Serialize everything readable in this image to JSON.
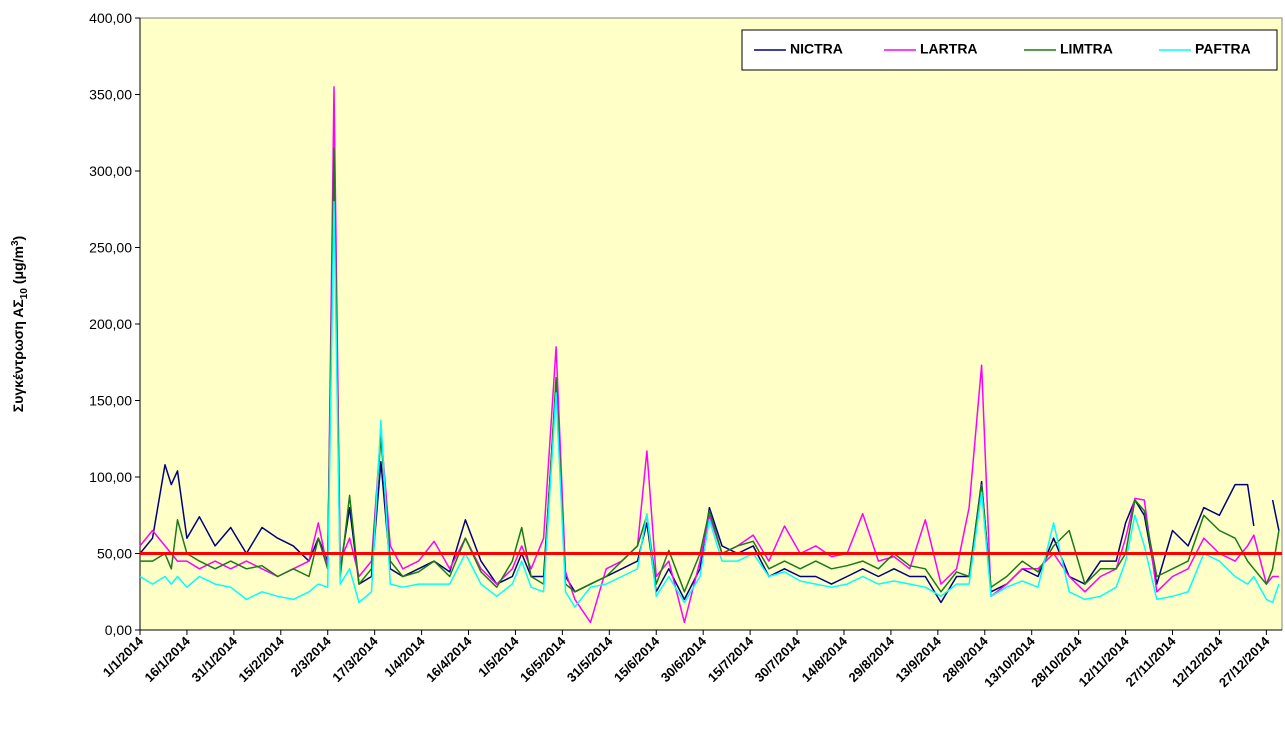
{
  "chart_data": {
    "type": "line",
    "ylabel_parts": [
      "Συγκέντρωση ΑΣ",
      "10",
      " (μg/m",
      "3",
      ")"
    ],
    "x": [
      "1/1/2014",
      "5/1/2014",
      "9/1/2014",
      "11/1/2014",
      "13/1/2014",
      "16/1/2014",
      "20/1/2014",
      "25/1/2014",
      "30/1/2014",
      "4/2/2014",
      "9/2/2014",
      "14/2/2014",
      "19/2/2014",
      "24/2/2014",
      "27/2/2014",
      "2/3/2014",
      "4/3/2014",
      "6/3/2014",
      "9/3/2014",
      "12/3/2014",
      "16/3/2014",
      "19/3/2014",
      "22/3/2014",
      "26/3/2014",
      "31/3/2014",
      "5/4/2014",
      "10/4/2014",
      "15/4/2014",
      "20/4/2014",
      "25/4/2014",
      "30/4/2014",
      "3/5/2014",
      "6/5/2014",
      "10/5/2014",
      "14/5/2014",
      "17/5/2014",
      "20/5/2014",
      "25/5/2014",
      "30/5/2014",
      "4/6/2014",
      "9/6/2014",
      "12/6/2014",
      "15/6/2014",
      "19/6/2014",
      "24/6/2014",
      "29/6/2014",
      "2/7/2014",
      "6/7/2014",
      "11/7/2014",
      "16/7/2014",
      "21/7/2014",
      "26/7/2014",
      "31/7/2014",
      "5/8/2014",
      "10/8/2014",
      "15/8/2014",
      "20/8/2014",
      "25/8/2014",
      "30/8/2014",
      "4/9/2014",
      "9/9/2014",
      "14/9/2014",
      "19/9/2014",
      "23/9/2014",
      "27/9/2014",
      "30/9/2014",
      "5/10/2014",
      "10/10/2014",
      "15/10/2014",
      "20/10/2014",
      "25/10/2014",
      "30/10/2014",
      "4/11/2014",
      "9/11/2014",
      "12/11/2014",
      "15/11/2014",
      "18/11/2014",
      "22/11/2014",
      "27/11/2014",
      "2/12/2014",
      "7/12/2014",
      "12/12/2014",
      "17/12/2014",
      "21/12/2014",
      "23/12/2014",
      "27/12/2014",
      "29/12/2014",
      "31/12/2014"
    ],
    "series": [
      {
        "name": "NICTRA",
        "color": "#000080",
        "values": [
          50,
          60,
          108,
          95,
          104,
          60,
          74,
          55,
          67,
          50,
          67,
          60,
          55,
          45,
          60,
          45,
          300,
          40,
          80,
          30,
          35,
          110,
          40,
          35,
          40,
          45,
          38,
          72,
          45,
          30,
          35,
          50,
          35,
          35,
          160,
          35,
          25,
          30,
          35,
          40,
          45,
          70,
          25,
          40,
          20,
          40,
          80,
          55,
          50,
          55,
          35,
          40,
          35,
          35,
          30,
          35,
          40,
          35,
          40,
          35,
          35,
          18,
          35,
          35,
          97,
          25,
          30,
          40,
          35,
          60,
          35,
          30,
          45,
          45,
          70,
          85,
          75,
          30,
          65,
          55,
          80,
          75,
          95,
          95,
          68,
          null,
          85,
          65
        ]
      },
      {
        "name": "LARTRA",
        "color": "#ff00ff",
        "values": [
          55,
          65,
          55,
          50,
          45,
          45,
          40,
          45,
          40,
          45,
          40,
          35,
          40,
          45,
          70,
          40,
          355,
          45,
          60,
          35,
          45,
          130,
          55,
          40,
          45,
          58,
          40,
          60,
          40,
          30,
          40,
          55,
          40,
          60,
          185,
          38,
          20,
          5,
          40,
          45,
          55,
          117,
          35,
          45,
          5,
          45,
          75,
          50,
          55,
          62,
          45,
          68,
          50,
          55,
          48,
          50,
          76,
          45,
          48,
          40,
          72,
          30,
          40,
          80,
          173,
          22,
          30,
          40,
          40,
          50,
          35,
          25,
          35,
          40,
          60,
          86,
          85,
          25,
          35,
          40,
          60,
          50,
          45,
          55,
          62,
          30,
          35,
          35
        ]
      },
      {
        "name": "LIMTRA",
        "color": "#1a7a1a",
        "values": [
          45,
          45,
          50,
          40,
          72,
          50,
          45,
          40,
          45,
          40,
          42,
          35,
          40,
          35,
          60,
          40,
          315,
          35,
          88,
          30,
          40,
          126,
          45,
          35,
          38,
          45,
          35,
          60,
          38,
          28,
          45,
          67,
          35,
          30,
          165,
          30,
          25,
          30,
          35,
          45,
          55,
          75,
          30,
          52,
          25,
          50,
          78,
          50,
          55,
          58,
          40,
          45,
          40,
          45,
          40,
          42,
          45,
          40,
          50,
          42,
          40,
          25,
          38,
          35,
          95,
          28,
          35,
          45,
          38,
          55,
          65,
          30,
          40,
          40,
          50,
          85,
          78,
          35,
          40,
          45,
          75,
          65,
          60,
          45,
          40,
          30,
          40,
          65
        ]
      },
      {
        "name": "PAFTRA",
        "color": "#00ffff",
        "values": [
          35,
          30,
          35,
          30,
          35,
          28,
          35,
          30,
          28,
          20,
          25,
          22,
          20,
          25,
          30,
          28,
          280,
          30,
          40,
          18,
          25,
          137,
          30,
          28,
          30,
          30,
          30,
          50,
          30,
          22,
          30,
          45,
          28,
          25,
          155,
          25,
          15,
          28,
          30,
          35,
          40,
          76,
          22,
          35,
          18,
          35,
          72,
          45,
          45,
          50,
          35,
          38,
          32,
          30,
          28,
          30,
          35,
          30,
          32,
          30,
          28,
          22,
          30,
          30,
          90,
          22,
          28,
          32,
          28,
          70,
          25,
          20,
          22,
          28,
          45,
          75,
          55,
          20,
          22,
          25,
          50,
          45,
          35,
          30,
          35,
          20,
          18,
          30
        ]
      }
    ],
    "xlim": [
      "1/1/2014",
      "31/12/2014"
    ],
    "xticks": [
      "1/1/2014",
      "16/1/2014",
      "31/1/2014",
      "15/2/2014",
      "2/3/2014",
      "17/3/2014",
      "1/4/2014",
      "16/4/2014",
      "1/5/2014",
      "16/5/2014",
      "31/5/2014",
      "15/6/2014",
      "30/6/2014",
      "15/7/2014",
      "30/7/2014",
      "14/8/2014",
      "29/8/2014",
      "13/9/2014",
      "28/9/2014",
      "13/10/2014",
      "28/10/2014",
      "12/11/2014",
      "27/11/2014",
      "12/12/2014",
      "27/12/2014"
    ],
    "ylim": [
      0,
      400
    ],
    "yticks": [
      {
        "value": 0,
        "label": "0,00"
      },
      {
        "value": 50,
        "label": "50,00"
      },
      {
        "value": 100,
        "label": "100,00"
      },
      {
        "value": 150,
        "label": "150,00"
      },
      {
        "value": 200,
        "label": "200,00"
      },
      {
        "value": 250,
        "label": "250,00"
      },
      {
        "value": 300,
        "label": "300,00"
      },
      {
        "value": 350,
        "label": "350,00"
      },
      {
        "value": 400,
        "label": "400,00"
      }
    ],
    "reference_line": {
      "value": 50,
      "color": "#ff0000"
    },
    "background": "#ffffc8",
    "legend": "upper right"
  }
}
